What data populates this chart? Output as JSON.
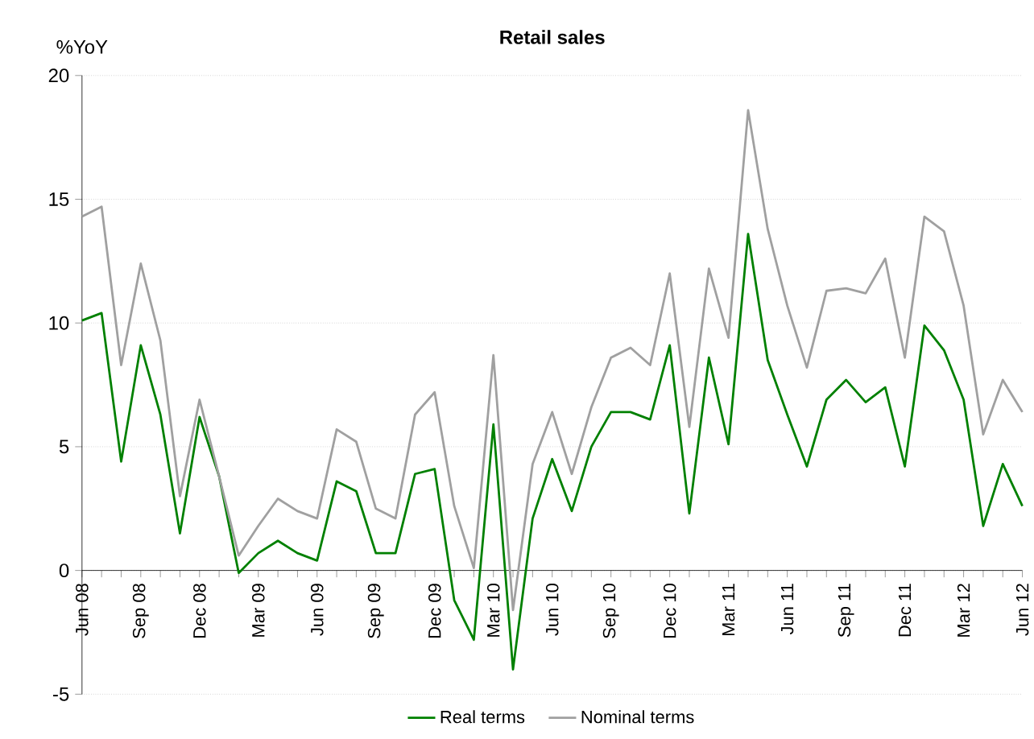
{
  "chart_data": {
    "type": "line",
    "title": "Retail sales",
    "ylabel": "%YoY",
    "categories": [
      "Jun 08",
      null,
      null,
      "Sep 08",
      null,
      null,
      "Dec 08",
      null,
      null,
      "Mar 09",
      null,
      null,
      "Jun 09",
      null,
      null,
      "Sep 09",
      null,
      null,
      "Dec 09",
      null,
      null,
      "Mar 10",
      null,
      null,
      "Jun 10",
      null,
      null,
      "Sep 10",
      null,
      null,
      "Dec 10",
      null,
      null,
      "Mar 11",
      null,
      null,
      "Jun 11",
      null,
      null,
      "Sep 11",
      null,
      null,
      "Dec 11",
      null,
      null,
      "Mar 12",
      null,
      null,
      "Jun 12"
    ],
    "series": [
      {
        "name": "Real terms",
        "color": "#008000",
        "values": [
          10.1,
          10.4,
          4.4,
          9.1,
          6.3,
          1.5,
          6.2,
          3.8,
          -0.1,
          0.7,
          1.2,
          0.7,
          0.4,
          3.6,
          3.2,
          0.7,
          0.7,
          3.9,
          4.1,
          -1.2,
          -2.8,
          5.9,
          -4.0,
          2.1,
          4.5,
          2.4,
          5.0,
          6.4,
          6.4,
          6.1,
          9.1,
          2.3,
          8.6,
          5.1,
          13.6,
          8.5,
          6.3,
          4.2,
          6.9,
          7.7,
          6.8,
          7.4,
          4.2,
          9.9,
          8.9,
          6.9,
          1.8,
          4.3,
          2.6
        ]
      },
      {
        "name": "Nominal terms",
        "color": "#a0a0a0",
        "values": [
          14.3,
          14.7,
          8.3,
          12.4,
          9.3,
          3.0,
          6.9,
          3.8,
          0.6,
          1.8,
          2.9,
          2.4,
          2.1,
          5.7,
          5.2,
          2.5,
          2.1,
          6.3,
          7.2,
          2.6,
          0.1,
          8.7,
          -1.6,
          4.3,
          6.4,
          3.9,
          6.6,
          8.6,
          9.0,
          8.3,
          12.0,
          5.8,
          12.2,
          9.4,
          18.6,
          13.8,
          10.7,
          8.2,
          11.3,
          11.4,
          11.2,
          12.6,
          8.6,
          14.3,
          13.7,
          10.7,
          5.5,
          7.7,
          6.4
        ]
      }
    ],
    "ylim": [
      -5,
      20
    ],
    "yticks": [
      -5,
      0,
      5,
      10,
      15,
      20
    ],
    "grid": "y",
    "legend": "bottom",
    "marker": "none",
    "line_style": "solid"
  }
}
